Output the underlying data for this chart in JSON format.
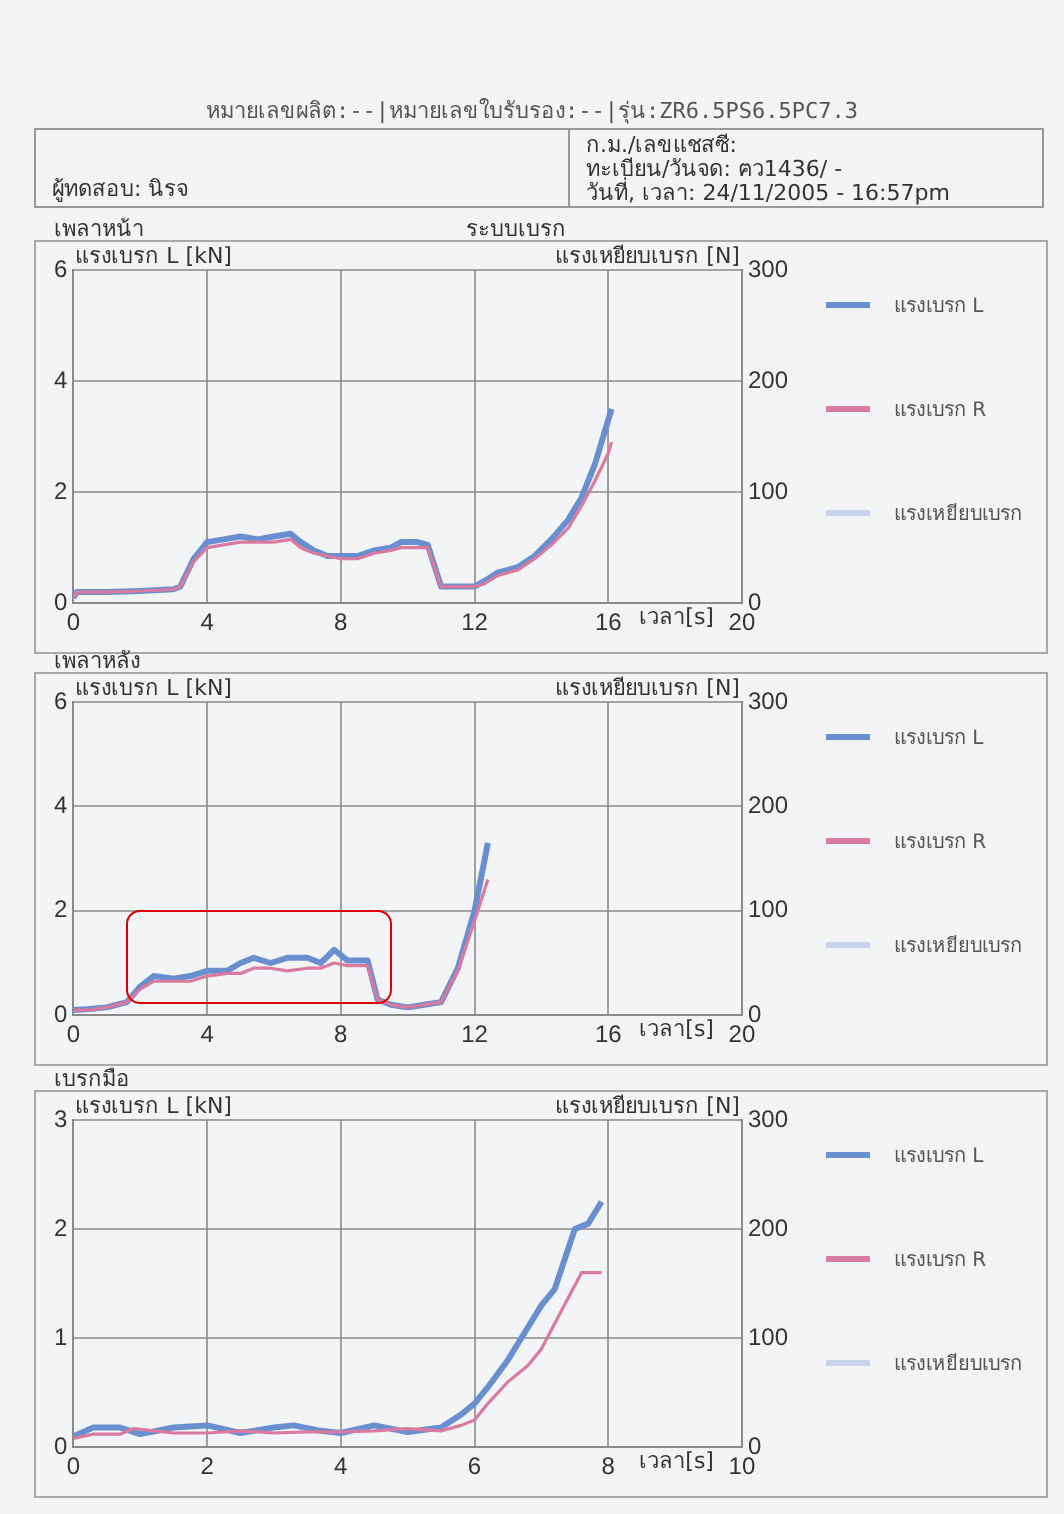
{
  "chart_data": [
    {
      "type": "line",
      "title": "เพลาหน้า",
      "subtitle": "ระบบเบรก",
      "xlabel": "เวลา[s]",
      "ylabel": "แรงเบรก L [kN]",
      "y2label": "แรงเหยียบเบรก [N]",
      "annotations": [
        "หมายเลขผลิต:--|หมายเลขใบรับรอง:--|รุ่น:ZR6.5PS6.5PC7.3",
        "ผู้ทดสอบ: นิรจ",
        "ก.ม./เลขแชสซี:",
        "ทะเบียน/วันจด: ฅว1436/ -",
        "วันที่, เวลา: 24/11/2005 - 16:57pm"
      ],
      "xlim": [
        0,
        20
      ],
      "xticks": [
        0,
        4,
        8,
        12,
        16,
        20
      ],
      "ylim": [
        0,
        6
      ],
      "yticks": [
        0,
        2,
        4,
        6
      ],
      "y2lim": [
        0,
        300
      ],
      "y2ticks": [
        0,
        100,
        200,
        300
      ],
      "grid": true,
      "legend": "right",
      "series": [
        {
          "name": "แรงเบรก L",
          "color": "#6a8fd0",
          "x": [
            0,
            0.1,
            1,
            2,
            3,
            3.2,
            3.6,
            4,
            4.5,
            5,
            5.5,
            6,
            6.5,
            6.8,
            7.2,
            7.6,
            8,
            8.5,
            9,
            9.5,
            9.8,
            10.3,
            10.6,
            11,
            11.5,
            12,
            12.3,
            12.7,
            13.3,
            13.8,
            14.3,
            14.8,
            15.2,
            15.6,
            16,
            16.1
          ],
          "values": [
            0.1,
            0.2,
            0.2,
            0.22,
            0.25,
            0.3,
            0.8,
            1.1,
            1.15,
            1.2,
            1.15,
            1.2,
            1.25,
            1.1,
            0.95,
            0.85,
            0.85,
            0.85,
            0.95,
            1,
            1.1,
            1.1,
            1.05,
            0.3,
            0.3,
            0.3,
            0.4,
            0.55,
            0.65,
            0.85,
            1.15,
            1.5,
            1.9,
            2.5,
            3.3,
            3.5
          ]
        },
        {
          "name": "แรงเบรก R",
          "color": "#d97aa0",
          "x": [
            0,
            0.1,
            1,
            2,
            3,
            3.2,
            3.6,
            4,
            4.5,
            5,
            5.5,
            6,
            6.5,
            6.8,
            7.2,
            7.6,
            8,
            8.5,
            9,
            9.5,
            9.8,
            10.3,
            10.6,
            11,
            11.5,
            12,
            12.3,
            12.7,
            13.3,
            13.8,
            14.3,
            14.8,
            15.2,
            15.6,
            16,
            16.1
          ],
          "values": [
            0.1,
            0.2,
            0.2,
            0.22,
            0.25,
            0.3,
            0.75,
            1,
            1.05,
            1.1,
            1.1,
            1.1,
            1.15,
            1,
            0.9,
            0.85,
            0.8,
            0.8,
            0.9,
            0.95,
            1,
            1,
            1,
            0.3,
            0.3,
            0.3,
            0.35,
            0.5,
            0.6,
            0.8,
            1.05,
            1.35,
            1.75,
            2.2,
            2.7,
            2.9
          ]
        },
        {
          "name": "แรงเหยียบเบรก",
          "color": "#c9d4ea"
        }
      ]
    },
    {
      "type": "line",
      "title": "เพลาหลัง",
      "xlabel": "เวลา[s]",
      "ylabel": "แรงเบรก L [kN]",
      "y2label": "แรงเหยียบเบรก [N]",
      "xlim": [
        0,
        20
      ],
      "xticks": [
        0,
        4,
        8,
        12,
        16,
        20
      ],
      "ylim": [
        0,
        6
      ],
      "yticks": [
        0,
        2,
        4,
        6
      ],
      "y2lim": [
        0,
        300
      ],
      "y2ticks": [
        0,
        100,
        200,
        300
      ],
      "grid": true,
      "legend": "right",
      "series": [
        {
          "name": "แรงเบรก L",
          "color": "#6a8fd0",
          "x": [
            0,
            0.5,
            1,
            1.6,
            2,
            2.4,
            3,
            3.5,
            4,
            4.6,
            5,
            5.4,
            5.9,
            6.4,
            7,
            7.4,
            7.8,
            8.2,
            8.8,
            9.1,
            9.5,
            10,
            10.5,
            11,
            11.5,
            12,
            12.4
          ],
          "values": [
            0.1,
            0.12,
            0.15,
            0.25,
            0.55,
            0.75,
            0.7,
            0.75,
            0.85,
            0.85,
            1,
            1.1,
            1,
            1.1,
            1.1,
            1,
            1.25,
            1.05,
            1.05,
            0.3,
            0.2,
            0.15,
            0.2,
            0.25,
            0.9,
            2,
            3.3
          ]
        },
        {
          "name": "แรงเบรก R",
          "color": "#d97aa0",
          "x": [
            0,
            0.5,
            1,
            1.6,
            2,
            2.4,
            3,
            3.5,
            4,
            4.6,
            5,
            5.4,
            5.9,
            6.4,
            7,
            7.4,
            7.8,
            8.2,
            8.8,
            9.1,
            9.5,
            10,
            10.5,
            11,
            11.5,
            12,
            12.4
          ],
          "values": [
            0.1,
            0.1,
            0.15,
            0.25,
            0.5,
            0.65,
            0.65,
            0.65,
            0.75,
            0.8,
            0.8,
            0.9,
            0.9,
            0.85,
            0.9,
            0.9,
            1,
            0.95,
            0.95,
            0.3,
            0.2,
            0.15,
            0.2,
            0.25,
            0.85,
            1.8,
            2.6
          ]
        },
        {
          "name": "แรงเหยียบเบรก",
          "color": "#c9d4ea"
        }
      ]
    },
    {
      "type": "line",
      "title": "เบรกมือ",
      "xlabel": "เวลา[s]",
      "ylabel": "แรงเบรก L [kN]",
      "y2label": "แรงเหยียบเบรก [N]",
      "xlim": [
        0,
        10
      ],
      "xticks": [
        0,
        2,
        4,
        6,
        8,
        10
      ],
      "ylim": [
        0,
        3
      ],
      "yticks": [
        0,
        1,
        2,
        3
      ],
      "y2lim": [
        0,
        300
      ],
      "y2ticks": [
        0,
        100,
        200,
        300
      ],
      "grid": true,
      "legend": "right",
      "series": [
        {
          "name": "แรงเบรก L",
          "color": "#6a8fd0",
          "x": [
            0,
            0.3,
            0.7,
            1,
            1.5,
            2,
            2.5,
            3,
            3.3,
            3.7,
            4,
            4.5,
            5,
            5.5,
            5.8,
            6,
            6.2,
            6.5,
            6.8,
            7,
            7.2,
            7.5,
            7.7,
            7.9
          ],
          "values": [
            0.1,
            0.18,
            0.18,
            0.12,
            0.18,
            0.2,
            0.13,
            0.18,
            0.2,
            0.15,
            0.13,
            0.2,
            0.14,
            0.18,
            0.3,
            0.4,
            0.55,
            0.8,
            1.1,
            1.3,
            1.45,
            2,
            2.05,
            2.25
          ]
        },
        {
          "name": "แรงเบรก R",
          "color": "#d97aa0",
          "x": [
            0,
            0.3,
            0.7,
            0.9,
            1.5,
            2,
            2.5,
            3,
            3.5,
            4,
            4.5,
            5,
            5.5,
            5.8,
            6,
            6.2,
            6.5,
            6.8,
            7,
            7.3,
            7.6,
            7.9
          ],
          "values": [
            0.08,
            0.12,
            0.12,
            0.17,
            0.13,
            0.13,
            0.15,
            0.13,
            0.14,
            0.14,
            0.15,
            0.17,
            0.15,
            0.2,
            0.25,
            0.4,
            0.6,
            0.75,
            0.9,
            1.25,
            1.6,
            1.6
          ]
        },
        {
          "name": "แรงเหยียบเบรก",
          "color": "#c9d4ea"
        }
      ]
    }
  ]
}
